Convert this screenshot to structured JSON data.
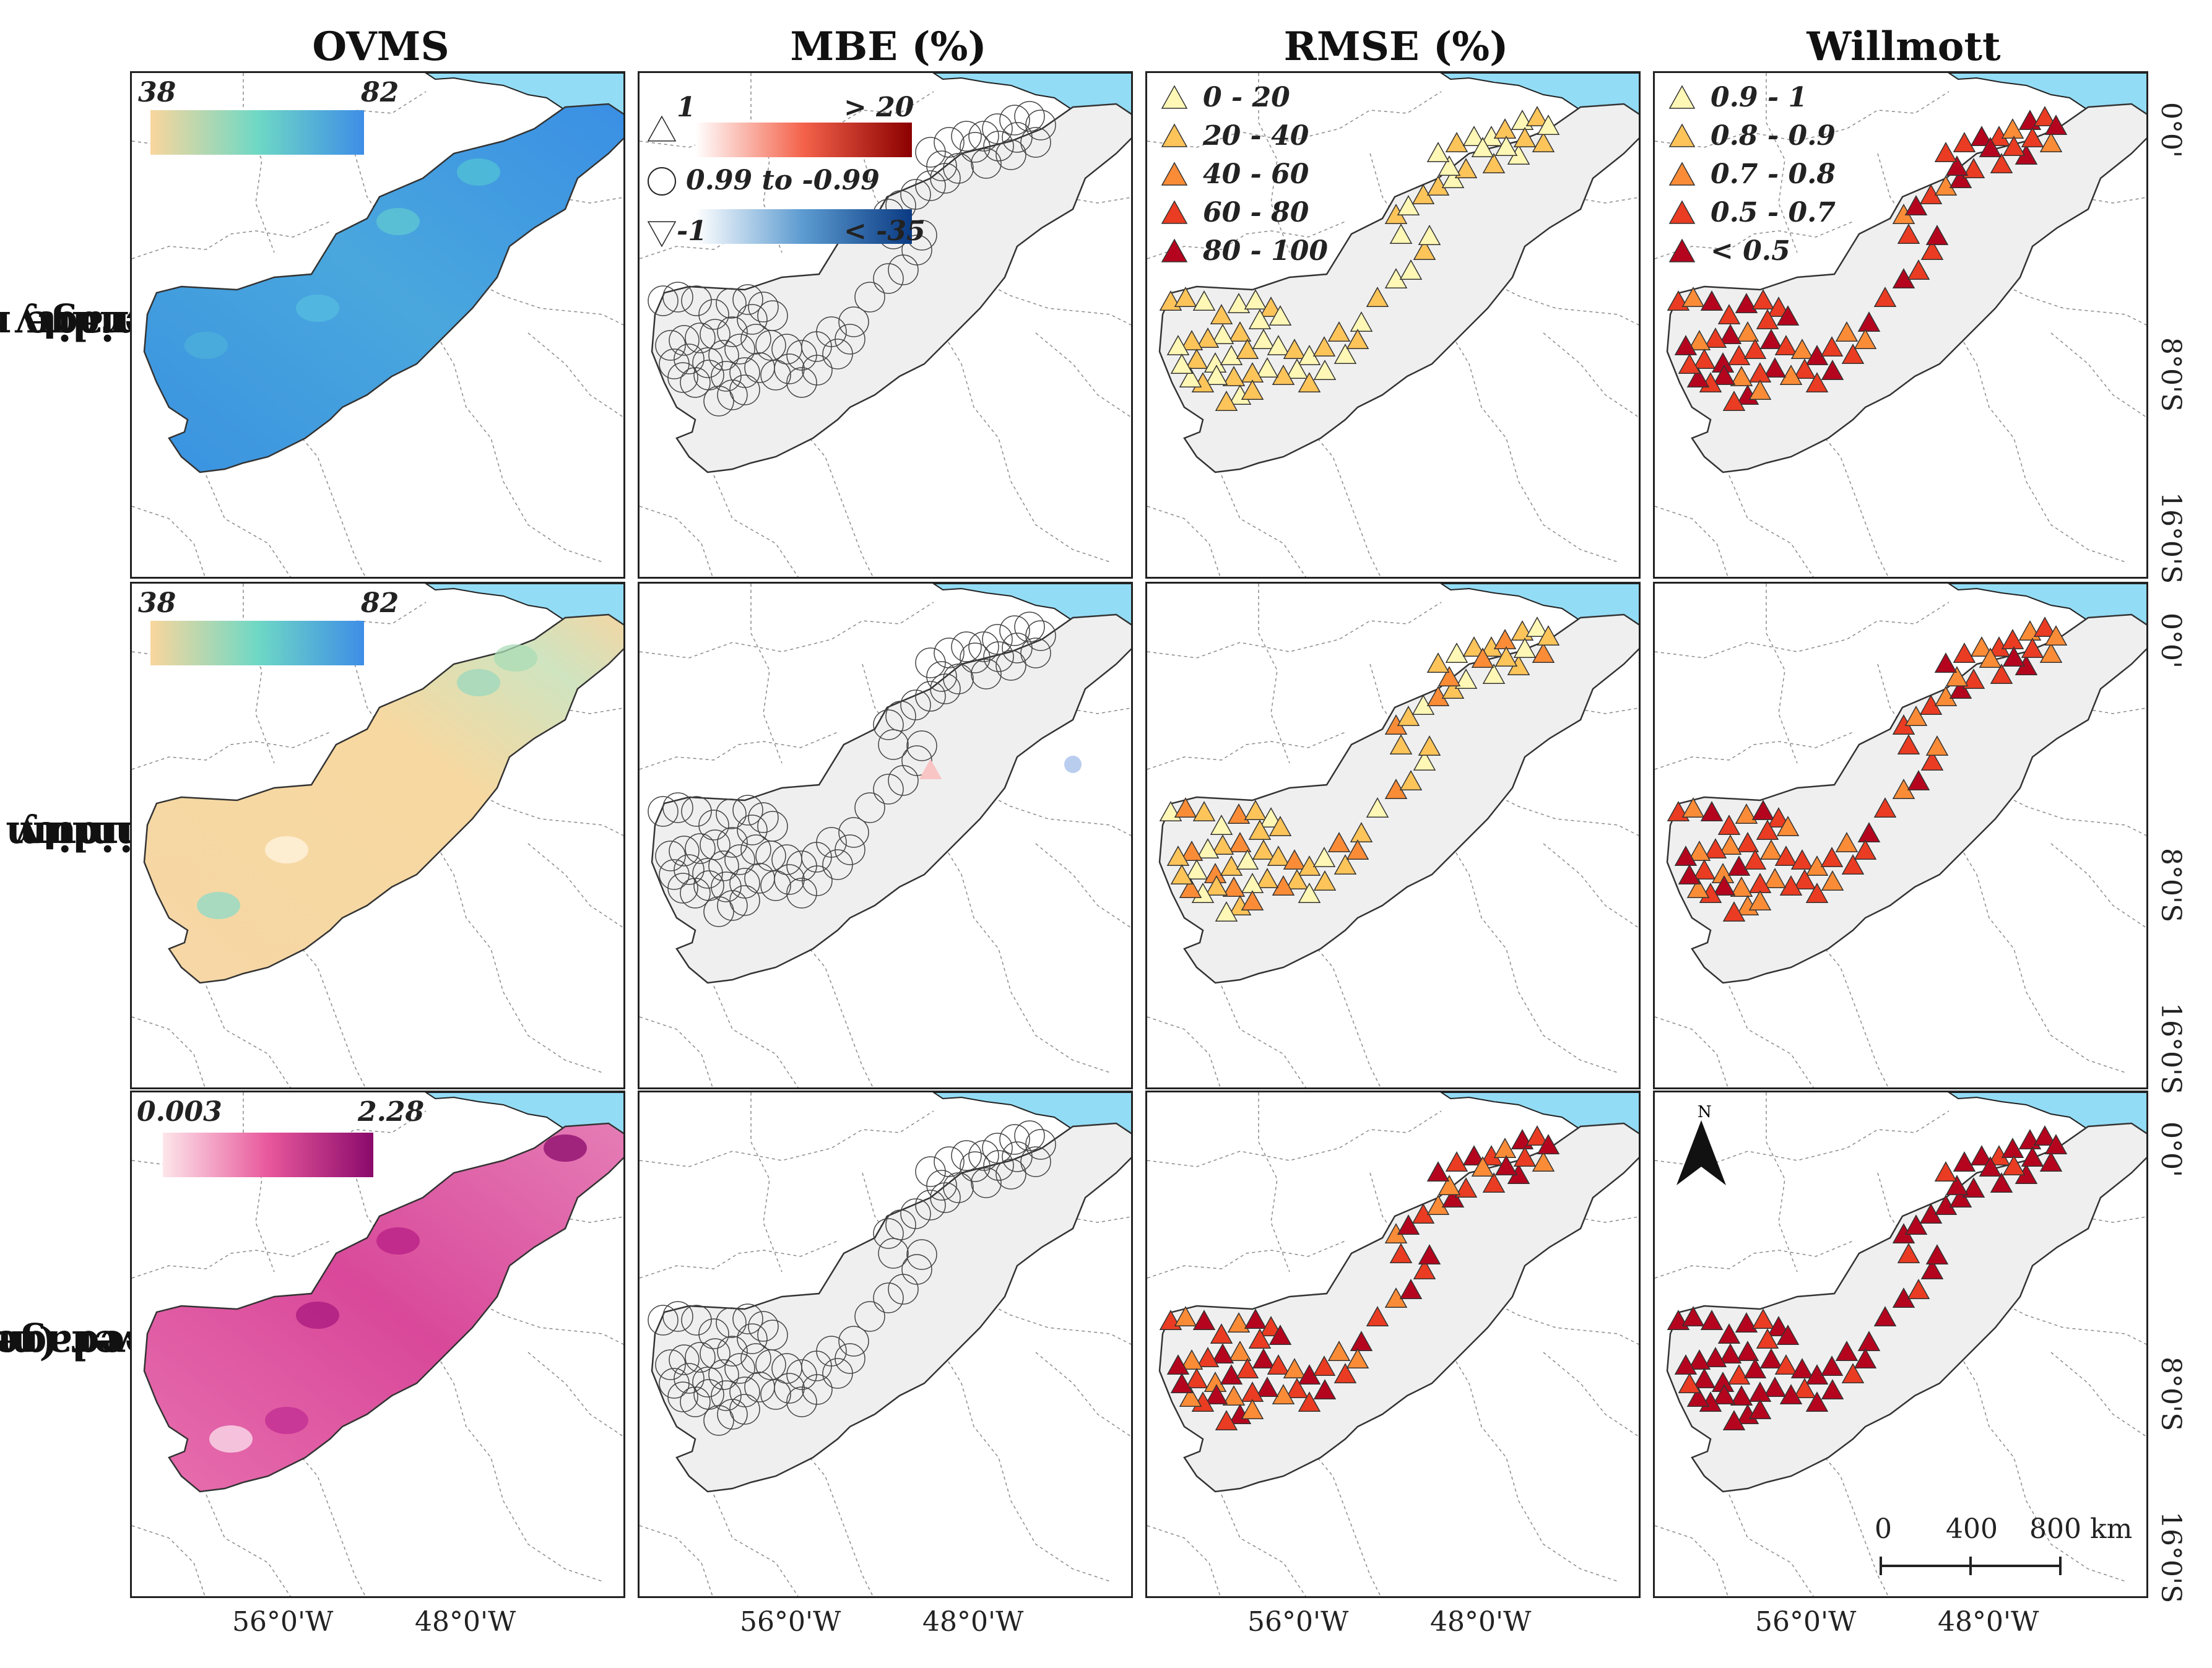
{
  "columns": [
    "OVMS",
    "MBE (%)",
    "RMSE (%)",
    "Willmott"
  ],
  "rows": [
    {
      "line1": "Average relative",
      "line2": "humidity (%)"
    },
    {
      "line1": "Minimum relative",
      "line2": "humidity (%)"
    },
    {
      "line1": "Average wind",
      "line2": "speed (m/s)"
    }
  ],
  "lat_ticks": [
    "0°0'",
    "8°0'S",
    "16°0'S"
  ],
  "lon_ticks": [
    "56°0'W",
    "48°0'W"
  ],
  "ovms_legends": [
    {
      "min": "38",
      "max": "82",
      "colors": [
        "#f9d69c",
        "#6fd8c5",
        "#3e8ee6"
      ]
    },
    {
      "min": "38",
      "max": "82",
      "colors": [
        "#f9d69c",
        "#6fd8c5",
        "#3e8ee6"
      ]
    },
    {
      "min": "0.003",
      "max": "2.28",
      "colors": [
        "#fde6ea",
        "#e8589c",
        "#8a0a6b"
      ]
    }
  ],
  "mbe_legend": {
    "pos_min": "1",
    "pos_max": "> 20",
    "neutral": "0.99 to -0.99",
    "neg_min": "-1",
    "neg_max": "< -35",
    "pos_colors": [
      "#ffffff",
      "#f4624a",
      "#8b0000"
    ],
    "neg_colors": [
      "#ffffff",
      "#5b9ad0",
      "#0a3a82"
    ]
  },
  "rmse_legend": [
    {
      "label": "0 - 20",
      "color": "#fff7b5"
    },
    {
      "label": "20 - 40",
      "color": "#fdc45a"
    },
    {
      "label": "40 - 60",
      "color": "#fb8c37"
    },
    {
      "label": "60 - 80",
      "color": "#ea3c22"
    },
    {
      "label": "80 - 100",
      "color": "#b5051e"
    }
  ],
  "willmott_legend": [
    {
      "label": "0.9 - 1",
      "color": "#fff7b5"
    },
    {
      "label": "0.8 - 0.9",
      "color": "#fdc45a"
    },
    {
      "label": "0.7 - 0.8",
      "color": "#fb8c37"
    },
    {
      "label": "0.5 - 0.7",
      "color": "#ea3c22"
    },
    {
      "label": "< 0.5",
      "color": "#b5051e"
    }
  ],
  "north_arrow": "N",
  "scale_bar": {
    "ticks": [
      "0",
      "400",
      "800 km"
    ]
  },
  "colors": {
    "ocean": "#93dcf5",
    "region": "#efefef",
    "border": "#333333"
  }
}
